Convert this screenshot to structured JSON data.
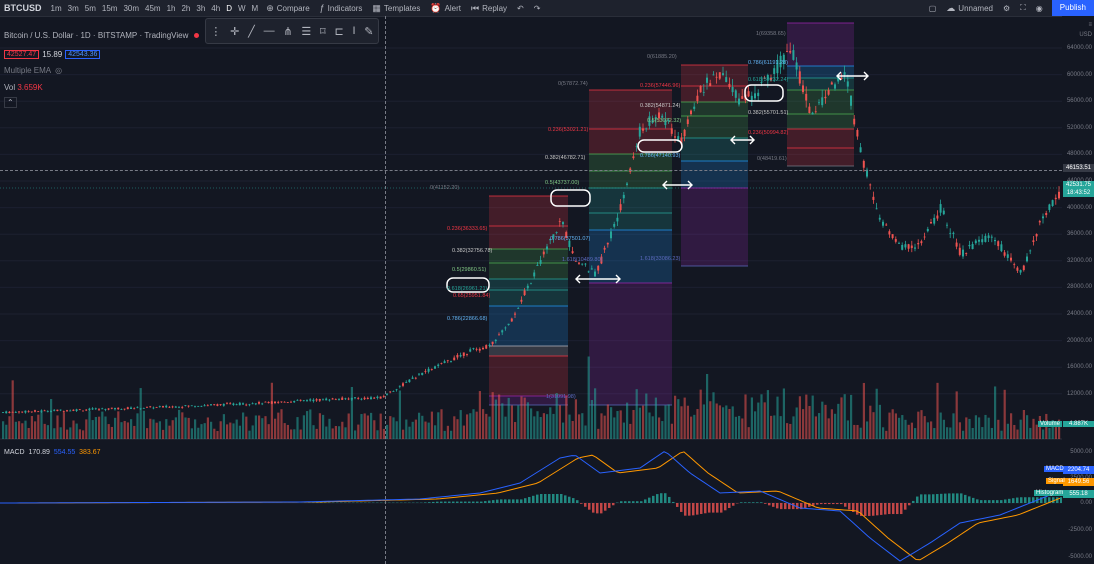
{
  "toolbar": {
    "symbol": "BTCUSD",
    "timeframes": [
      "1m",
      "3m",
      "5m",
      "15m",
      "30m",
      "45m",
      "1h",
      "2h",
      "3h",
      "4h",
      "D",
      "W",
      "M"
    ],
    "compare": "Compare",
    "indicators": "Indicators",
    "templates": "Templates",
    "alert": "Alert",
    "replay": "Replay",
    "layout_name": "Unnamed",
    "publish": "Publish"
  },
  "legend": {
    "title": "Bitcoin / U.S. Dollar",
    "interval": "1D",
    "exchange": "BITSTAMP",
    "source": "TradingView",
    "bid": "42527.47",
    "spread": "15.89",
    "ask": "42543.36",
    "indicator_1": "Multiple EMA",
    "vol_label": "Vol",
    "vol_value": "3.659K"
  },
  "price_axis": {
    "currency": "USD",
    "ticks": [
      "64000.00",
      "60000.00",
      "56000.00",
      "52000.00",
      "48000.00",
      "44000.00",
      "40000.00",
      "36000.00",
      "32000.00",
      "28000.00",
      "24000.00",
      "20000.00",
      "16000.00",
      "12000.00"
    ],
    "crosshair_price": "46153.51",
    "last_price": "42531.75",
    "countdown": "18:43:52",
    "volume_label": "Volume",
    "volume_value": "4.887K",
    "macd_ticks": [
      "5000.00",
      "2500.00",
      "0.00",
      "-2500.00",
      "-5000.00"
    ]
  },
  "macd": {
    "label": "MACD",
    "v1": "170.89",
    "v2": "554.55",
    "v3": "383.67",
    "badge_macd_label": "MACD",
    "badge_macd_value": "2204.74",
    "badge_signal_label": "Signal",
    "badge_signal_value": "1649.56",
    "badge_hist_label": "Histogram",
    "badge_hist_value": "555.18"
  },
  "fib_labels": [
    {
      "text": "0(41152.20)",
      "color": "#787b86"
    },
    {
      "text": "0.236(36333.65)",
      "color": "#f23645"
    },
    {
      "text": "0.382(32756.78)",
      "color": "#c8c8c8"
    },
    {
      "text": "0.5(29860.51)",
      "color": "#81c784"
    },
    {
      "text": "0.618(26961.21)",
      "color": "#26a69a"
    },
    {
      "text": "0.65(25951.84)",
      "color": "#f23645"
    },
    {
      "text": "0.786(22866.68)",
      "color": "#64b5f6"
    },
    {
      "text": "0(57872.74)",
      "color": "#787b86"
    },
    {
      "text": "0.236(53021.21)",
      "color": "#f23645"
    },
    {
      "text": "0.382(46782.71)",
      "color": "#c8c8c8"
    },
    {
      "text": "0.5(43737.00)",
      "color": "#81c784"
    },
    {
      "text": "0.786(37501.07)",
      "color": "#64b5f6"
    },
    {
      "text": "1(31091.98)",
      "color": "#5c6bc0"
    },
    {
      "text": "0(61885.20)",
      "color": "#787b86"
    },
    {
      "text": "0.236(57446.96)",
      "color": "#f23645"
    },
    {
      "text": "0.382(54871.24)",
      "color": "#c8c8c8"
    },
    {
      "text": "0.5(53072.32)",
      "color": "#81c784"
    },
    {
      "text": "0.786(47140.93)",
      "color": "#64b5f6"
    },
    {
      "text": "1.618(33086.23)",
      "color": "#5c6bc0"
    },
    {
      "text": "1(69358.65)",
      "color": "#787b86"
    },
    {
      "text": "0.786(61191.28)",
      "color": "#64b5f6"
    },
    {
      "text": "0.618(59232.24)",
      "color": "#26a69a"
    },
    {
      "text": "0.382(55701.51)",
      "color": "#c8c8c8"
    },
    {
      "text": "0.236(50994.82)",
      "color": "#f23645"
    },
    {
      "text": "0(48419.61)",
      "color": "#787b86"
    },
    {
      "text": "1.618(10489.80)",
      "color": "#5c6bc0"
    }
  ]
}
